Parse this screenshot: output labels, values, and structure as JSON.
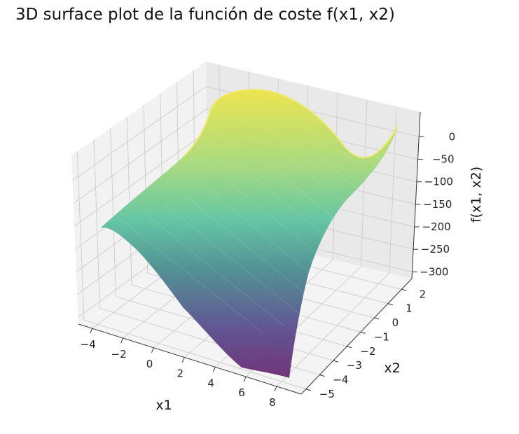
{
  "chart_data": {
    "type": "surface",
    "title": "3D surface plot de la función de coste f(x1, x2)",
    "xlabel": "x1",
    "ylabel": "x2",
    "zlabel": "f(x1, x2)",
    "x_ticks": [
      "−4",
      "−2",
      "0",
      "2",
      "4",
      "6",
      "8"
    ],
    "y_ticks": [
      "−5",
      "−4",
      "−3",
      "−2",
      "−1",
      "0",
      "1",
      "2"
    ],
    "z_ticks": [
      "−300",
      "−250",
      "−200",
      "−150",
      "−100",
      "−50",
      "0"
    ],
    "xlim": [
      -5,
      8
    ],
    "ylim": [
      -5,
      2.5
    ],
    "zlim": [
      -330,
      25
    ],
    "grid": true,
    "colormap": "viridis",
    "surface_points": [
      {
        "x1": -5,
        "x2": 2.5,
        "f": -10
      },
      {
        "x1": 8,
        "x2": 2.5,
        "f": -5
      },
      {
        "x1": -5,
        "x2": -5,
        "f": -175
      },
      {
        "x1": 8,
        "x2": -5,
        "f": -320
      }
    ]
  }
}
